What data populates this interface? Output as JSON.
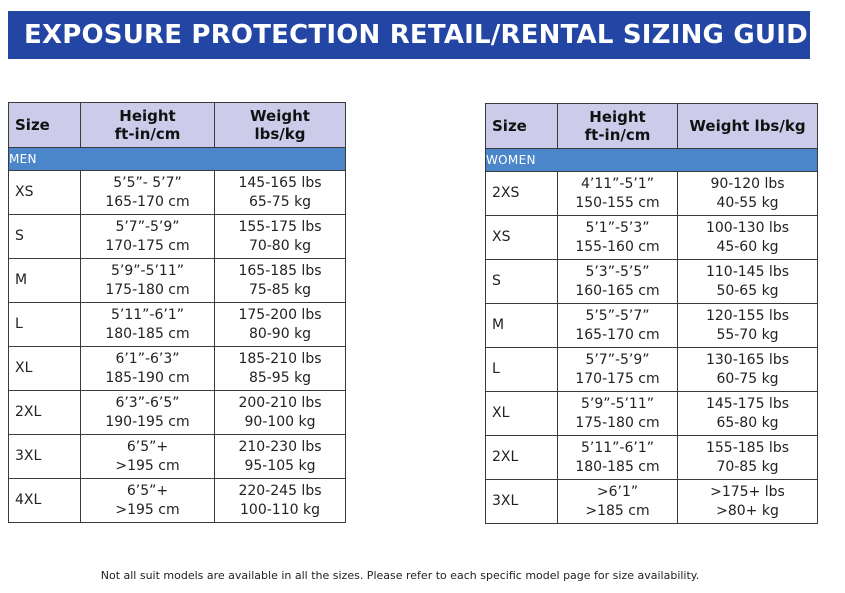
{
  "banner": {
    "title": "EXPOSURE PROTECTION RETAIL/RENTAL SIZING GUIDE"
  },
  "men": {
    "headers": {
      "size": "Size",
      "height": [
        "Height",
        "ft-in/cm"
      ],
      "weight": [
        "Weight",
        "lbs/kg"
      ]
    },
    "section_label": "MEN",
    "rows": [
      {
        "size": "XS",
        "height": [
          "5’5”- 5’7”",
          "165-170 cm"
        ],
        "weight": [
          "145-165 lbs",
          "65-75 kg"
        ]
      },
      {
        "size": "S",
        "height": [
          "5’7”-5’9”",
          "170-175 cm"
        ],
        "weight": [
          "155-175 lbs",
          "70-80 kg"
        ]
      },
      {
        "size": "M",
        "height": [
          "5’9”-5’11”",
          "175-180 cm"
        ],
        "weight": [
          "165-185 lbs",
          "75-85 kg"
        ]
      },
      {
        "size": "L",
        "height": [
          "5’11”-6’1”",
          "180-185 cm"
        ],
        "weight": [
          "175-200 lbs",
          "80-90 kg"
        ]
      },
      {
        "size": "XL",
        "height": [
          "6’1”-6’3”",
          "185-190 cm"
        ],
        "weight": [
          "185-210 lbs",
          "85-95 kg"
        ]
      },
      {
        "size": "2XL",
        "height": [
          "6’3”-6’5”",
          "190-195 cm"
        ],
        "weight": [
          "200-210 lbs",
          "90-100 kg"
        ]
      },
      {
        "size": "3XL",
        "height": [
          "6’5”+",
          ">195 cm"
        ],
        "weight": [
          "210-230 lbs",
          "95-105 kg"
        ]
      },
      {
        "size": "4XL",
        "height": [
          "6’5”+",
          ">195 cm"
        ],
        "weight": [
          "220-245 lbs",
          "100-110 kg"
        ]
      }
    ]
  },
  "women": {
    "headers": {
      "size": "Size",
      "height": [
        "Height",
        "ft-in/cm"
      ],
      "weight": [
        "Weight lbs/kg"
      ]
    },
    "section_label": "WOMEN",
    "rows": [
      {
        "size": "2XS",
        "height": [
          "4’11”-5’1”",
          "150-155 cm"
        ],
        "weight": [
          "90-120 lbs",
          "40-55 kg"
        ]
      },
      {
        "size": "XS",
        "height": [
          "5’1”-5’3”",
          "155-160 cm"
        ],
        "weight": [
          "100-130 lbs",
          "45-60 kg"
        ]
      },
      {
        "size": "S",
        "height": [
          "5’3”-5’5”",
          "160-165 cm"
        ],
        "weight": [
          "110-145 lbs",
          "50-65 kg"
        ]
      },
      {
        "size": "M",
        "height": [
          "5’5”-5’7”",
          "165-170 cm"
        ],
        "weight": [
          "120-155 lbs",
          "55-70 kg"
        ]
      },
      {
        "size": "L",
        "height": [
          "5’7”-5’9”",
          "170-175 cm"
        ],
        "weight": [
          "130-165 lbs",
          "60-75 kg"
        ]
      },
      {
        "size": "XL",
        "height": [
          "5’9”-5’11”",
          "175-180 cm"
        ],
        "weight": [
          "145-175 lbs",
          "65-80 kg"
        ]
      },
      {
        "size": "2XL",
        "height": [
          "5’11”-6’1”",
          "180-185 cm"
        ],
        "weight": [
          "155-185 lbs",
          "70-85 kg"
        ]
      },
      {
        "size": "3XL",
        "height": [
          ">6’1”",
          ">185 cm"
        ],
        "weight": [
          ">175+ lbs",
          ">80+ kg"
        ]
      }
    ]
  },
  "footnote": "Not all suit models are available in all the sizes. Please refer to each specific model page for size availability.",
  "colors": {
    "banner": "#2345a3",
    "header_bg": "#ccccea",
    "section_bg": "#4b86cb"
  }
}
